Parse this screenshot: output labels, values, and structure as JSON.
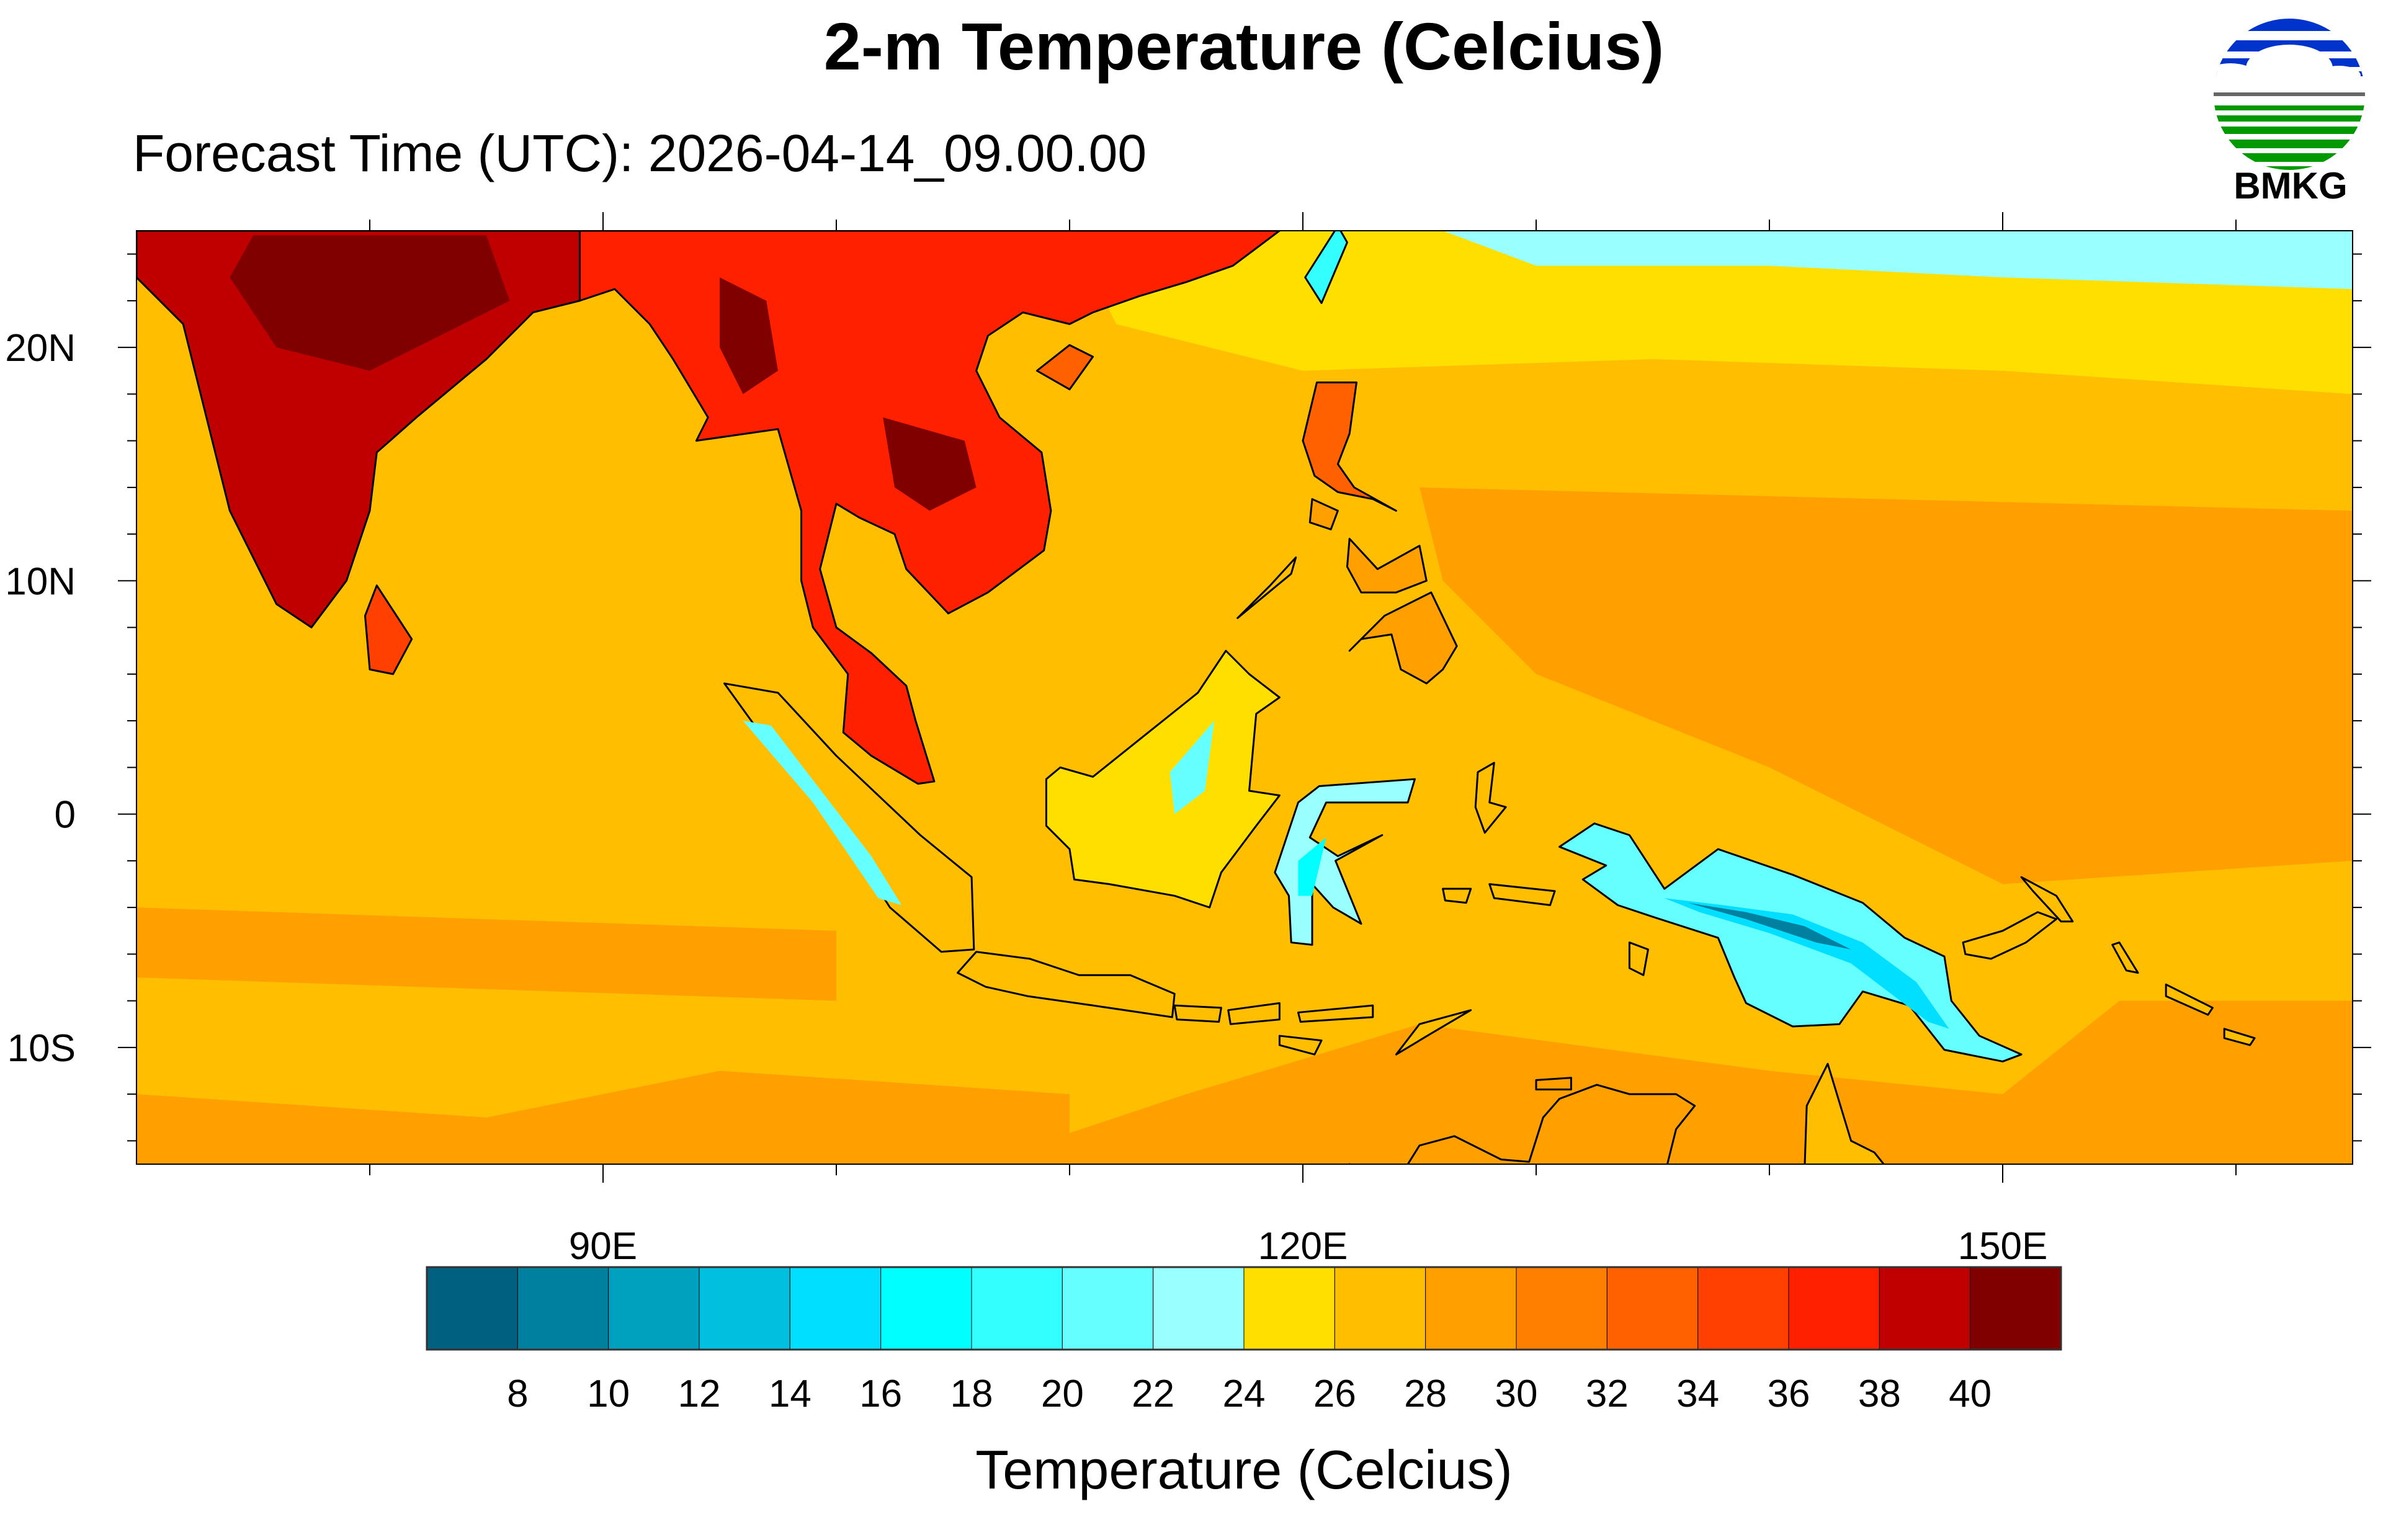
{
  "title": "2-m Temperature (Celcius)",
  "subtitle": "Forecast Time (UTC): 2026-04-14_09.00.00",
  "logo": {
    "text": "BMKG",
    "colors": {
      "sky": "#0033cc",
      "land": "#009900",
      "horizon": "#666666"
    }
  },
  "map": {
    "lon_range": [
      70,
      165
    ],
    "lat_range": [
      -15,
      25
    ],
    "lon_ticks": [
      {
        "value": 90,
        "label": "90E"
      },
      {
        "value": 120,
        "label": "120E"
      },
      {
        "value": 150,
        "label": "150E"
      }
    ],
    "lat_ticks": [
      {
        "value": 20,
        "label": "20N"
      },
      {
        "value": 10,
        "label": "10N"
      },
      {
        "value": 0,
        "label": "0"
      },
      {
        "value": -10,
        "label": "10S"
      }
    ]
  },
  "colorbar": {
    "label": "Temperature (Celcius)",
    "levels": [
      "8",
      "10",
      "12",
      "14",
      "16",
      "18",
      "20",
      "22",
      "24",
      "26",
      "28",
      "30",
      "32",
      "34",
      "36",
      "38",
      "40"
    ],
    "colors": [
      "#006080",
      "#00809f",
      "#00a0bf",
      "#00bfdf",
      "#00dfff",
      "#00ffff",
      "#33ffff",
      "#66ffff",
      "#99ffff",
      "#ffdf00",
      "#ffbf00",
      "#ffa000",
      "#ff8000",
      "#ff6000",
      "#ff4000",
      "#ff2000",
      "#c00000",
      "#800000"
    ]
  }
}
